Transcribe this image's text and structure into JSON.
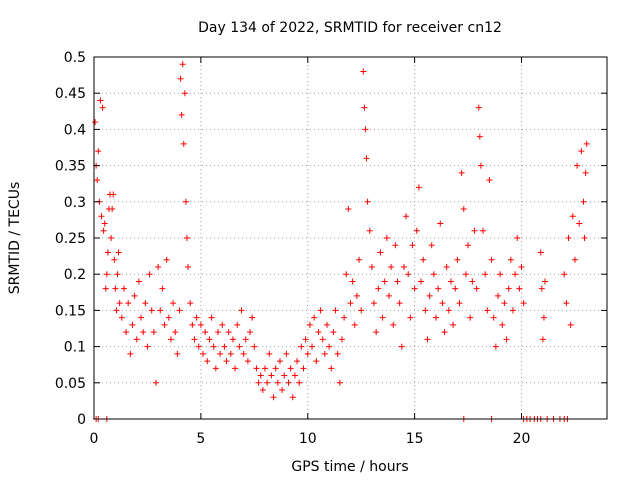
{
  "chart_data": {
    "type": "scatter",
    "title": "Day 134 of 2022, SRMTID for receiver cn12",
    "xlabel": "GPS time / hours",
    "ylabel": "SRMTID / TECUs",
    "xlim": [
      0,
      24
    ],
    "ylim": [
      0,
      0.5
    ],
    "xticks": [
      {
        "value": 0,
        "label": "0"
      },
      {
        "value": 5,
        "label": "5"
      },
      {
        "value": 10,
        "label": "10"
      },
      {
        "value": 15,
        "label": "15"
      },
      {
        "value": 20,
        "label": "20"
      }
    ],
    "yticks": [
      {
        "value": 0,
        "label": "0"
      },
      {
        "value": 0.05,
        "label": "0.05"
      },
      {
        "value": 0.1,
        "label": "0.1"
      },
      {
        "value": 0.15,
        "label": "0.15"
      },
      {
        "value": 0.2,
        "label": "0.2"
      },
      {
        "value": 0.25,
        "label": "0.25"
      },
      {
        "value": 0.3,
        "label": "0.3"
      },
      {
        "value": 0.35,
        "label": "0.35"
      },
      {
        "value": 0.4,
        "label": "0.4"
      },
      {
        "value": 0.45,
        "label": "0.45"
      },
      {
        "value": 0.5,
        "label": "0.5"
      }
    ],
    "grid": true,
    "marker": "+",
    "series": [
      {
        "name": "SRMTID",
        "color": "#ff0000",
        "points": [
          [
            0.05,
            0.41
          ],
          [
            0.1,
            0.35
          ],
          [
            0.15,
            0.33
          ],
          [
            0.2,
            0.37
          ],
          [
            0.25,
            0.3
          ],
          [
            0.3,
            0.44
          ],
          [
            0.35,
            0.28
          ],
          [
            0.4,
            0.43
          ],
          [
            0.45,
            0.26
          ],
          [
            0.5,
            0.27
          ],
          [
            0.55,
            0.18
          ],
          [
            0.6,
            0.2
          ],
          [
            0.65,
            0.23
          ],
          [
            0.7,
            0.29
          ],
          [
            0.75,
            0.31
          ],
          [
            0.8,
            0.25
          ],
          [
            0.85,
            0.29
          ],
          [
            0.9,
            0.31
          ],
          [
            0.95,
            0.22
          ],
          [
            1.0,
            0.18
          ],
          [
            1.05,
            0.15
          ],
          [
            1.1,
            0.2
          ],
          [
            1.15,
            0.23
          ],
          [
            1.2,
            0.16
          ],
          [
            1.3,
            0.14
          ],
          [
            1.4,
            0.18
          ],
          [
            1.5,
            0.12
          ],
          [
            1.6,
            0.16
          ],
          [
            1.7,
            0.09
          ],
          [
            1.8,
            0.13
          ],
          [
            1.9,
            0.17
          ],
          [
            2.0,
            0.11
          ],
          [
            2.1,
            0.19
          ],
          [
            2.2,
            0.14
          ],
          [
            2.3,
            0.12
          ],
          [
            2.4,
            0.16
          ],
          [
            2.5,
            0.1
          ],
          [
            2.6,
            0.2
          ],
          [
            2.7,
            0.15
          ],
          [
            2.8,
            0.12
          ],
          [
            2.9,
            0.05
          ],
          [
            3.0,
            0.21
          ],
          [
            3.1,
            0.15
          ],
          [
            3.2,
            0.18
          ],
          [
            3.3,
            0.13
          ],
          [
            3.4,
            0.22
          ],
          [
            3.5,
            0.14
          ],
          [
            3.6,
            0.11
          ],
          [
            3.7,
            0.16
          ],
          [
            3.8,
            0.12
          ],
          [
            3.9,
            0.09
          ],
          [
            4.0,
            0.15
          ],
          [
            4.05,
            0.47
          ],
          [
            4.1,
            0.42
          ],
          [
            4.15,
            0.49
          ],
          [
            4.2,
            0.38
          ],
          [
            4.25,
            0.45
          ],
          [
            4.3,
            0.3
          ],
          [
            4.35,
            0.25
          ],
          [
            4.4,
            0.21
          ],
          [
            4.5,
            0.16
          ],
          [
            4.6,
            0.13
          ],
          [
            4.7,
            0.11
          ],
          [
            4.8,
            0.14
          ],
          [
            4.9,
            0.1
          ],
          [
            5.0,
            0.13
          ],
          [
            5.1,
            0.09
          ],
          [
            5.2,
            0.12
          ],
          [
            5.3,
            0.08
          ],
          [
            5.4,
            0.11
          ],
          [
            5.5,
            0.14
          ],
          [
            5.6,
            0.1
          ],
          [
            5.7,
            0.07
          ],
          [
            5.8,
            0.12
          ],
          [
            5.9,
            0.09
          ],
          [
            6.0,
            0.13
          ],
          [
            6.1,
            0.1
          ],
          [
            6.2,
            0.08
          ],
          [
            6.3,
            0.12
          ],
          [
            6.4,
            0.09
          ],
          [
            6.5,
            0.11
          ],
          [
            6.6,
            0.07
          ],
          [
            6.7,
            0.13
          ],
          [
            6.8,
            0.1
          ],
          [
            6.9,
            0.15
          ],
          [
            7.0,
            0.09
          ],
          [
            7.1,
            0.11
          ],
          [
            7.2,
            0.08
          ],
          [
            7.3,
            0.12
          ],
          [
            7.4,
            0.14
          ],
          [
            7.5,
            0.1
          ],
          [
            7.6,
            0.07
          ],
          [
            7.7,
            0.05
          ],
          [
            7.8,
            0.06
          ],
          [
            7.9,
            0.04
          ],
          [
            8.0,
            0.07
          ],
          [
            8.1,
            0.05
          ],
          [
            8.2,
            0.09
          ],
          [
            8.3,
            0.06
          ],
          [
            8.4,
            0.03
          ],
          [
            8.5,
            0.07
          ],
          [
            8.6,
            0.05
          ],
          [
            8.7,
            0.08
          ],
          [
            8.8,
            0.04
          ],
          [
            8.9,
            0.06
          ],
          [
            9.0,
            0.09
          ],
          [
            9.1,
            0.05
          ],
          [
            9.2,
            0.07
          ],
          [
            9.3,
            0.03
          ],
          [
            9.4,
            0.06
          ],
          [
            9.5,
            0.08
          ],
          [
            9.6,
            0.05
          ],
          [
            9.7,
            0.1
          ],
          [
            9.8,
            0.07
          ],
          [
            9.9,
            0.11
          ],
          [
            10.0,
            0.09
          ],
          [
            10.1,
            0.13
          ],
          [
            10.2,
            0.1
          ],
          [
            10.3,
            0.14
          ],
          [
            10.4,
            0.08
          ],
          [
            10.5,
            0.12
          ],
          [
            10.6,
            0.15
          ],
          [
            10.7,
            0.11
          ],
          [
            10.8,
            0.09
          ],
          [
            10.9,
            0.13
          ],
          [
            11.0,
            0.1
          ],
          [
            11.1,
            0.07
          ],
          [
            11.2,
            0.12
          ],
          [
            11.3,
            0.15
          ],
          [
            11.4,
            0.09
          ],
          [
            11.5,
            0.05
          ],
          [
            11.6,
            0.11
          ],
          [
            11.7,
            0.14
          ],
          [
            11.8,
            0.2
          ],
          [
            11.9,
            0.29
          ],
          [
            12.0,
            0.16
          ],
          [
            12.1,
            0.19
          ],
          [
            12.2,
            0.13
          ],
          [
            12.3,
            0.17
          ],
          [
            12.4,
            0.22
          ],
          [
            12.5,
            0.15
          ],
          [
            12.6,
            0.48
          ],
          [
            12.65,
            0.43
          ],
          [
            12.7,
            0.4
          ],
          [
            12.75,
            0.36
          ],
          [
            12.8,
            0.3
          ],
          [
            12.9,
            0.26
          ],
          [
            13.0,
            0.21
          ],
          [
            13.1,
            0.16
          ],
          [
            13.2,
            0.12
          ],
          [
            13.3,
            0.18
          ],
          [
            13.4,
            0.23
          ],
          [
            13.5,
            0.14
          ],
          [
            13.6,
            0.19
          ],
          [
            13.7,
            0.25
          ],
          [
            13.8,
            0.17
          ],
          [
            13.9,
            0.21
          ],
          [
            14.0,
            0.13
          ],
          [
            14.1,
            0.24
          ],
          [
            14.2,
            0.19
          ],
          [
            14.3,
            0.16
          ],
          [
            14.4,
            0.1
          ],
          [
            14.5,
            0.21
          ],
          [
            14.6,
            0.28
          ],
          [
            14.7,
            0.2
          ],
          [
            14.8,
            0.14
          ],
          [
            14.9,
            0.24
          ],
          [
            15.0,
            0.18
          ],
          [
            15.1,
            0.26
          ],
          [
            15.2,
            0.32
          ],
          [
            15.3,
            0.19
          ],
          [
            15.4,
            0.22
          ],
          [
            15.5,
            0.15
          ],
          [
            15.6,
            0.11
          ],
          [
            15.7,
            0.17
          ],
          [
            15.8,
            0.24
          ],
          [
            15.9,
            0.2
          ],
          [
            16.0,
            0.14
          ],
          [
            16.1,
            0.18
          ],
          [
            16.2,
            0.27
          ],
          [
            16.3,
            0.16
          ],
          [
            16.4,
            0.12
          ],
          [
            16.5,
            0.21
          ],
          [
            16.6,
            0.15
          ],
          [
            16.7,
            0.19
          ],
          [
            16.8,
            0.13
          ],
          [
            16.9,
            0.18
          ],
          [
            17.0,
            0.22
          ],
          [
            17.1,
            0.16
          ],
          [
            17.2,
            0.34
          ],
          [
            17.3,
            0.29
          ],
          [
            17.4,
            0.2
          ],
          [
            17.5,
            0.24
          ],
          [
            17.6,
            0.14
          ],
          [
            17.7,
            0.19
          ],
          [
            17.8,
            0.26
          ],
          [
            17.9,
            0.18
          ],
          [
            18.0,
            0.43
          ],
          [
            18.05,
            0.39
          ],
          [
            18.1,
            0.35
          ],
          [
            18.2,
            0.26
          ],
          [
            18.3,
            0.2
          ],
          [
            18.4,
            0.15
          ],
          [
            18.5,
            0.33
          ],
          [
            18.6,
            0.22
          ],
          [
            18.7,
            0.14
          ],
          [
            18.8,
            0.1
          ],
          [
            18.9,
            0.17
          ],
          [
            19.0,
            0.2
          ],
          [
            19.1,
            0.13
          ],
          [
            19.2,
            0.16
          ],
          [
            19.3,
            0.11
          ],
          [
            19.4,
            0.18
          ],
          [
            19.5,
            0.22
          ],
          [
            19.6,
            0.15
          ],
          [
            19.7,
            0.2
          ],
          [
            19.8,
            0.25
          ],
          [
            19.9,
            0.18
          ],
          [
            20.0,
            0.21
          ],
          [
            20.1,
            0.16
          ],
          [
            20.9,
            0.23
          ],
          [
            20.95,
            0.18
          ],
          [
            21.0,
            0.11
          ],
          [
            21.05,
            0.14
          ],
          [
            21.1,
            0.19
          ],
          [
            22.0,
            0.2
          ],
          [
            22.1,
            0.16
          ],
          [
            22.2,
            0.25
          ],
          [
            22.3,
            0.13
          ],
          [
            22.4,
            0.28
          ],
          [
            22.5,
            0.22
          ],
          [
            22.6,
            0.35
          ],
          [
            22.7,
            0.27
          ],
          [
            22.8,
            0.37
          ],
          [
            22.9,
            0.3
          ],
          [
            22.95,
            0.25
          ],
          [
            23.0,
            0.34
          ],
          [
            23.05,
            0.38
          ]
        ]
      }
    ],
    "zero_points_x": [
      0.1,
      0.2,
      0.6,
      17.3,
      18.6,
      20.1,
      20.25,
      20.4,
      20.6,
      20.75,
      20.9,
      21.2,
      21.5,
      21.8,
      22.0,
      22.15
    ]
  }
}
